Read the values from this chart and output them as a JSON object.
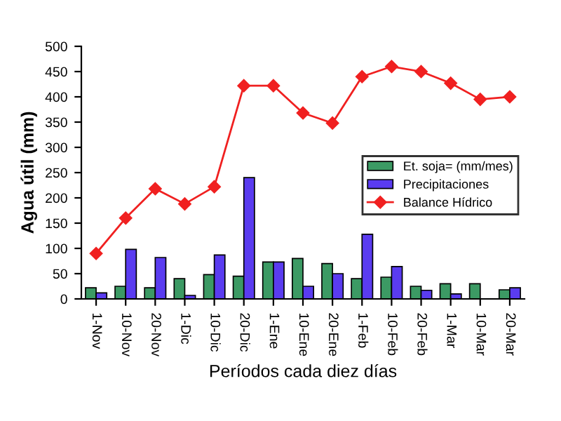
{
  "chart_data": {
    "type": "bar",
    "xlabel": "Períodos cada diez días",
    "ylabel": "Agua útil (mm)",
    "categories": [
      "1-Nov",
      "10-Nov",
      "20-Nov",
      "1-Dic",
      "10-Dic",
      "20-Dic",
      "1-Ene",
      "10-Ene",
      "20-Ene",
      "1-Feb",
      "10-Feb",
      "20-Feb",
      "1-Mar",
      "10-Mar",
      "20-Mar"
    ],
    "series": [
      {
        "name": "Et. soja= (mm/mes)",
        "color": "#3c9a64",
        "values": [
          22,
          25,
          22,
          40,
          48,
          45,
          73,
          80,
          70,
          40,
          43,
          25,
          30,
          30,
          18
        ]
      },
      {
        "name": "Precipitaciones",
        "color": "#5a3cf0",
        "values": [
          12,
          98,
          82,
          7,
          87,
          240,
          73,
          25,
          50,
          128,
          64,
          17,
          10,
          null,
          22
        ]
      },
      {
        "name": "Balance Hídrico",
        "color": "#f02020",
        "type": "line",
        "marker": "diamond",
        "values": [
          90,
          160,
          218,
          188,
          222,
          422,
          422,
          368,
          348,
          440,
          460,
          450,
          427,
          395,
          400
        ]
      }
    ],
    "ylim": [
      0,
      500
    ],
    "yticks": [
      0,
      50,
      100,
      150,
      200,
      250,
      300,
      350,
      400,
      450,
      500
    ],
    "grid": false,
    "legend": "center right"
  }
}
